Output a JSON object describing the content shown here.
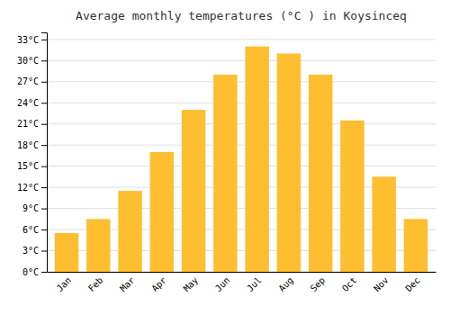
{
  "chart_data": {
    "type": "bar",
    "title": "Average monthly temperatures (°C ) in Koysinceq",
    "categories": [
      "Jan",
      "Feb",
      "Mar",
      "Apr",
      "May",
      "Jun",
      "Jul",
      "Aug",
      "Sep",
      "Oct",
      "Nov",
      "Dec"
    ],
    "values": [
      5.5,
      7.5,
      11.5,
      17.0,
      23.0,
      28.0,
      32.0,
      31.0,
      28.0,
      21.5,
      13.5,
      7.5
    ],
    "color": "#FFBE30",
    "ylim": [
      0,
      34
    ],
    "yticks": [
      {
        "value": 0,
        "label": "0°C"
      },
      {
        "value": 3,
        "label": "3°C"
      },
      {
        "value": 6,
        "label": "6°C"
      },
      {
        "value": 9,
        "label": "9°C"
      },
      {
        "value": 12,
        "label": "12°C"
      },
      {
        "value": 15,
        "label": "15°C"
      },
      {
        "value": 18,
        "label": "18°C"
      },
      {
        "value": 21,
        "label": "21°C"
      },
      {
        "value": 24,
        "label": "24°C"
      },
      {
        "value": 27,
        "label": "27°C"
      },
      {
        "value": 30,
        "label": "30°C"
      },
      {
        "value": 33,
        "label": "33°C"
      }
    ],
    "grid": true
  }
}
